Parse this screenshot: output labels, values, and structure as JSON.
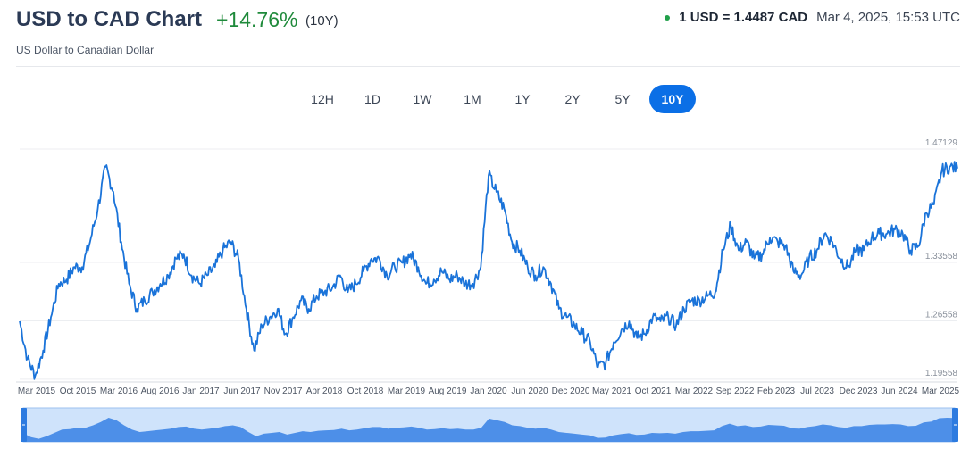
{
  "header": {
    "title": "USD to CAD Chart",
    "change": "+14.76%",
    "period": "(10Y)",
    "subtitle": "US Dollar to Canadian Dollar",
    "rate": "1 USD = 1.4487 CAD",
    "timestamp": "Mar 4, 2025, 15:53 UTC",
    "live_dot_color": "#21a04a",
    "change_color": "#1f8a3b"
  },
  "tabs": [
    {
      "label": "12H",
      "active": false
    },
    {
      "label": "1D",
      "active": false
    },
    {
      "label": "1W",
      "active": false
    },
    {
      "label": "1M",
      "active": false
    },
    {
      "label": "1Y",
      "active": false
    },
    {
      "label": "2Y",
      "active": false
    },
    {
      "label": "5Y",
      "active": false
    },
    {
      "label": "10Y",
      "active": true
    }
  ],
  "chart_data": {
    "type": "line",
    "title": "USD to CAD Chart",
    "ylim": [
      1.1955,
      1.47129
    ],
    "y_ticks": [
      "1.47129",
      "1.33558",
      "1.26558",
      "1.19558"
    ],
    "x_ticks": [
      "Mar 2015",
      "Oct 2015",
      "Mar 2016",
      "Aug 2016",
      "Jan 2017",
      "Jun 2017",
      "Nov 2017",
      "Apr 2018",
      "Oct 2018",
      "Mar 2019",
      "Aug 2019",
      "Jan 2020",
      "Jun 2020",
      "Dec 2020",
      "May 2021",
      "Oct 2021",
      "Mar 2022",
      "Sep 2022",
      "Feb 2023",
      "Jul 2023",
      "Dec 2023",
      "Jun 2024",
      "Mar 2025"
    ],
    "line_color": "#1a73d9",
    "grid": true,
    "series": [
      {
        "x": [
          "2015-03",
          "2015-04",
          "2015-05",
          "2015-06",
          "2015-07",
          "2015-08",
          "2015-09",
          "2015-10",
          "2015-11",
          "2015-12",
          "2016-01",
          "2016-02",
          "2016-03",
          "2016-04",
          "2016-05",
          "2016-06",
          "2016-07",
          "2016-08",
          "2016-09",
          "2016-10",
          "2016-11",
          "2016-12",
          "2017-01",
          "2017-02",
          "2017-03",
          "2017-04",
          "2017-05",
          "2017-06",
          "2017-07",
          "2017-08",
          "2017-09",
          "2017-10",
          "2017-11",
          "2017-12",
          "2018-01",
          "2018-02",
          "2018-03",
          "2018-04",
          "2018-05",
          "2018-06",
          "2018-07",
          "2018-08",
          "2018-09",
          "2018-10",
          "2018-11",
          "2018-12",
          "2019-01",
          "2019-02",
          "2019-03",
          "2019-04",
          "2019-05",
          "2019-06",
          "2019-07",
          "2019-08",
          "2019-09",
          "2019-10",
          "2019-11",
          "2019-12",
          "2020-01",
          "2020-02",
          "2020-03",
          "2020-04",
          "2020-05",
          "2020-06",
          "2020-07",
          "2020-08",
          "2020-09",
          "2020-10",
          "2020-11",
          "2020-12",
          "2021-01",
          "2021-02",
          "2021-03",
          "2021-04",
          "2021-05",
          "2021-06",
          "2021-07",
          "2021-08",
          "2021-09",
          "2021-10",
          "2021-11",
          "2021-12",
          "2022-01",
          "2022-02",
          "2022-03",
          "2022-04",
          "2022-05",
          "2022-06",
          "2022-07",
          "2022-08",
          "2022-09",
          "2022-10",
          "2022-11",
          "2022-12",
          "2023-01",
          "2023-02",
          "2023-03",
          "2023-04",
          "2023-05",
          "2023-06",
          "2023-07",
          "2023-08",
          "2023-09",
          "2023-10",
          "2023-11",
          "2023-12",
          "2024-01",
          "2024-02",
          "2024-03",
          "2024-04",
          "2024-05",
          "2024-06",
          "2024-07",
          "2024-08",
          "2024-09",
          "2024-10",
          "2024-11",
          "2024-12",
          "2025-01",
          "2025-02",
          "2025-03"
        ],
        "y": [
          1.265,
          1.22,
          1.2,
          1.23,
          1.27,
          1.31,
          1.315,
          1.33,
          1.33,
          1.36,
          1.4,
          1.45,
          1.42,
          1.36,
          1.31,
          1.28,
          1.29,
          1.3,
          1.31,
          1.32,
          1.34,
          1.345,
          1.32,
          1.31,
          1.32,
          1.33,
          1.35,
          1.36,
          1.34,
          1.28,
          1.23,
          1.26,
          1.27,
          1.28,
          1.25,
          1.27,
          1.29,
          1.28,
          1.295,
          1.3,
          1.305,
          1.32,
          1.3,
          1.31,
          1.325,
          1.34,
          1.34,
          1.32,
          1.33,
          1.335,
          1.345,
          1.33,
          1.31,
          1.315,
          1.325,
          1.315,
          1.32,
          1.31,
          1.31,
          1.33,
          1.44,
          1.42,
          1.4,
          1.36,
          1.35,
          1.33,
          1.32,
          1.33,
          1.31,
          1.28,
          1.27,
          1.26,
          1.25,
          1.24,
          1.21,
          1.215,
          1.24,
          1.255,
          1.265,
          1.245,
          1.25,
          1.27,
          1.265,
          1.27,
          1.26,
          1.28,
          1.29,
          1.29,
          1.295,
          1.3,
          1.35,
          1.38,
          1.35,
          1.36,
          1.34,
          1.345,
          1.365,
          1.36,
          1.355,
          1.325,
          1.32,
          1.34,
          1.35,
          1.37,
          1.36,
          1.34,
          1.33,
          1.35,
          1.35,
          1.365,
          1.37,
          1.37,
          1.375,
          1.37,
          1.35,
          1.355,
          1.395,
          1.405,
          1.445,
          1.45,
          1.448
        ]
      }
    ]
  },
  "navigator": {
    "fill_color": "#4d8fe8",
    "window_color": "#cfe3fb",
    "left_handle_label": "left-handle",
    "right_handle_label": "right-handle"
  }
}
